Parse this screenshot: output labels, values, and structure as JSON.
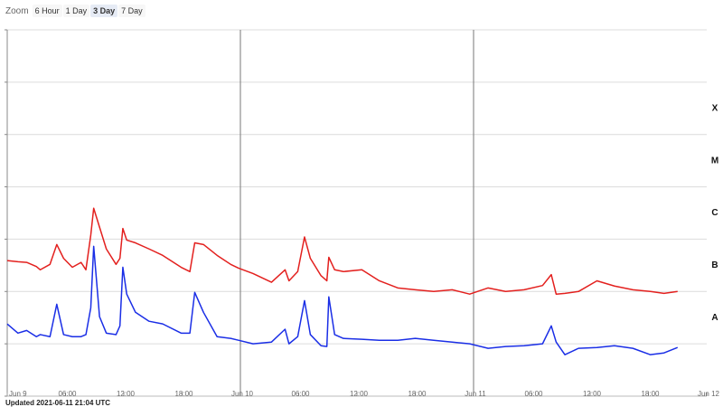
{
  "toolbar": {
    "label": "Zoom",
    "options": [
      "6 Hour",
      "1 Day",
      "3 Day",
      "7 Day"
    ],
    "selected": 2
  },
  "footer": "Updated 2021-06-11 21:04 UTC",
  "chart_data": {
    "type": "line",
    "log_y": true,
    "grid": true,
    "xlim": [
      0,
      72
    ],
    "xticks": [
      {
        "value": 0,
        "label": "Jun 9"
      },
      {
        "value": 6,
        "label": "06:00"
      },
      {
        "value": 12,
        "label": "12:00"
      },
      {
        "value": 18,
        "label": "18:00"
      },
      {
        "value": 24,
        "label": "Jun 10"
      },
      {
        "value": 30,
        "label": "06:00"
      },
      {
        "value": 36,
        "label": "12:00"
      },
      {
        "value": 42,
        "label": "18:00"
      },
      {
        "value": 48,
        "label": "Jun 11"
      },
      {
        "value": 54,
        "label": "06:00"
      },
      {
        "value": 60,
        "label": "12:00"
      },
      {
        "value": 66,
        "label": "18:00"
      },
      {
        "value": 72,
        "label": "Jun 12"
      }
    ],
    "day_lines": [
      24,
      48
    ],
    "ylim": [
      1e-09,
      0.01
    ],
    "yticks": [
      1e-09,
      1e-08,
      1e-07,
      1e-06,
      1e-05,
      0.0001,
      0.001,
      0.01
    ],
    "classes": [
      {
        "label": "A",
        "from": 1e-08,
        "to": 1e-07
      },
      {
        "label": "B",
        "from": 1e-07,
        "to": 1e-06
      },
      {
        "label": "C",
        "from": 1e-06,
        "to": 1e-05
      },
      {
        "label": "M",
        "from": 1e-05,
        "to": 0.0001
      },
      {
        "label": "X",
        "from": 0.0001,
        "to": 0.001
      }
    ],
    "x": [
      0,
      1.1,
      2.0,
      3.0,
      3.4,
      4.4,
      5.1,
      5.8,
      6.7,
      7.6,
      8.1,
      8.6,
      8.9,
      9.5,
      10.2,
      11.2,
      11.6,
      11.9,
      12.3,
      13.2,
      14.6,
      16.0,
      17.9,
      18.8,
      19.3,
      20.2,
      21.6,
      23.0,
      23.8,
      25.3,
      27.2,
      28.6,
      29.0,
      29.9,
      30.6,
      31.2,
      32.3,
      32.9,
      33.1,
      33.7,
      34.6,
      36.5,
      38.3,
      40.2,
      42.0,
      43.9,
      45.8,
      47.6,
      49.5,
      51.3,
      53.2,
      55.1,
      56.0,
      56.5,
      57.4,
      58.8,
      60.7,
      62.5,
      64.4,
      66.2,
      67.6,
      69.0
    ],
    "series": [
      {
        "color": "#e3201e",
        "values": [
          3.9e-07,
          3.7e-07,
          3.6e-07,
          3e-07,
          2.6e-07,
          3.3e-07,
          7.9e-07,
          4.3e-07,
          2.9e-07,
          3.6e-07,
          2.6e-07,
          1.2e-06,
          3.9e-06,
          1.7e-06,
          6.5e-07,
          3.3e-07,
          4.3e-07,
          1.6e-06,
          9.6e-07,
          8.5e-07,
          6.5e-07,
          4.9e-07,
          2.9e-07,
          2.4e-07,
          8.5e-07,
          7.9e-07,
          4.9e-07,
          3.3e-07,
          2.8e-07,
          2.2e-07,
          1.5e-07,
          2.6e-07,
          1.6e-07,
          2.4e-07,
          1.1e-06,
          4.3e-07,
          2e-07,
          1.6e-07,
          4.5e-07,
          2.6e-07,
          2.4e-07,
          2.6e-07,
          1.6e-07,
          1.17e-07,
          1.08e-07,
          1e-07,
          1.08e-07,
          8.9e-08,
          1.17e-07,
          1e-07,
          1.08e-07,
          1.3e-07,
          2.1e-07,
          8.9e-08,
          9.2e-08,
          1e-07,
          1.6e-07,
          1.27e-07,
          1.08e-07,
          1e-07,
          9.2e-08,
          1e-07
        ]
      },
      {
        "color": "#1a2ee6",
        "values": [
          2.4e-08,
          1.6e-08,
          1.8e-08,
          1.37e-08,
          1.5e-08,
          1.37e-08,
          5.7e-08,
          1.5e-08,
          1.37e-08,
          1.37e-08,
          1.5e-08,
          4.9e-08,
          7.3e-07,
          3.3e-08,
          1.6e-08,
          1.5e-08,
          2.2e-08,
          2.9e-07,
          8.9e-08,
          4e-08,
          2.7e-08,
          2.4e-08,
          1.6e-08,
          1.6e-08,
          9.6e-08,
          4e-08,
          1.37e-08,
          1.27e-08,
          1.17e-08,
          1e-08,
          1.08e-08,
          1.9e-08,
          1e-08,
          1.37e-08,
          6.7e-08,
          1.5e-08,
          9.2e-09,
          8.9e-09,
          7.9e-08,
          1.5e-08,
          1.27e-08,
          1.22e-08,
          1.17e-08,
          1.17e-08,
          1.27e-08,
          1.17e-08,
          1.08e-08,
          1e-08,
          8.2e-09,
          8.9e-09,
          9.2e-09,
          1e-08,
          2.2e-08,
          1.08e-08,
          6.2e-09,
          8.2e-09,
          8.5e-09,
          9.2e-09,
          8.2e-09,
          6.2e-09,
          6.7e-09,
          8.5e-09
        ]
      }
    ]
  }
}
